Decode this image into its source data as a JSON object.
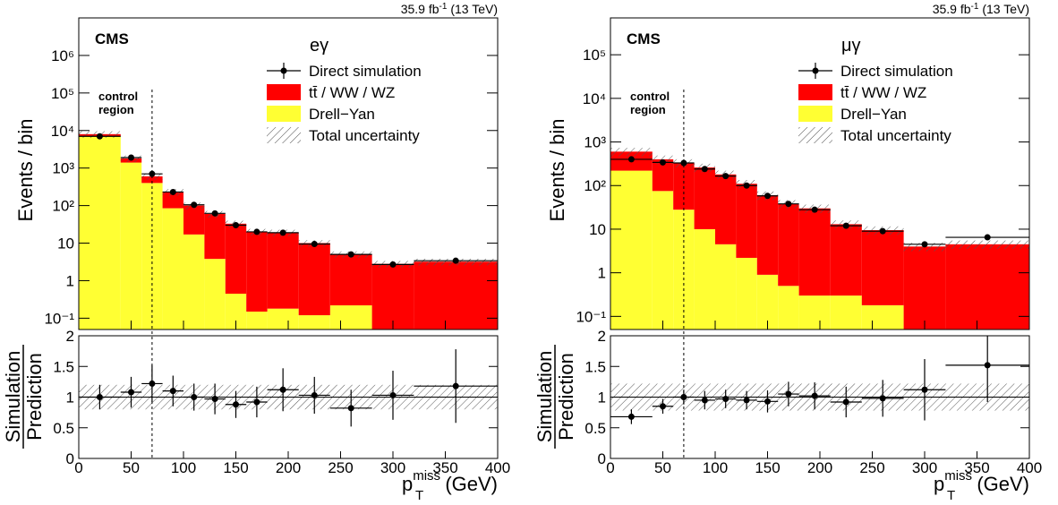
{
  "chart_data": [
    {
      "type": "stacked-histogram",
      "lumi": "35.9 fb",
      "lumi_sup": "-1",
      "lumi_tail": " (13 TeV)",
      "experiment": "CMS",
      "title": "eγ",
      "control": {
        "x": 70,
        "label": [
          "control",
          "region"
        ]
      },
      "y_label": "Events / bin",
      "x_label": {
        "base": "p",
        "sub": "T",
        "sup": "miss",
        "unit": " (GeV)"
      },
      "ratio_label": [
        "Simulation",
        "Prediction"
      ],
      "bins": [
        0,
        40,
        60,
        80,
        100,
        120,
        140,
        160,
        180,
        210,
        240,
        280,
        320,
        400
      ],
      "series": [
        {
          "name": "Drell−Yan",
          "color": "#ffff33",
          "values": [
            7000,
            1400,
            400,
            85,
            17,
            3.8,
            0.45,
            0.15,
            0.18,
            0.12,
            0.22,
            null,
            null
          ]
        },
        {
          "name": "tt̄ / WW / WZ",
          "color": "#ff0000",
          "values": [
            1000,
            400,
            200,
            145,
            83,
            56,
            32.5,
            19.85,
            18.8,
            9.9,
            4.8,
            2.8,
            3.2
          ]
        }
      ],
      "points": {
        "name": "Direct simulation",
        "color": "#000000",
        "values": [
          7000,
          1900,
          700,
          230,
          105,
          62,
          30,
          20,
          19,
          9.5,
          5,
          2.7,
          3.4
        ],
        "ratio": [
          1.0,
          1.08,
          1.22,
          1.1,
          1.0,
          0.97,
          0.88,
          0.92,
          1.12,
          1.03,
          0.82,
          1.03,
          1.18
        ],
        "ratio_errors": [
          0.2,
          0.25,
          0.3,
          0.25,
          0.22,
          0.25,
          0.22,
          0.25,
          0.35,
          0.3,
          0.3,
          0.4,
          0.6
        ]
      },
      "uncertainty": {
        "name": "Total uncertainty",
        "values": [
          0.2,
          0.2,
          0.2,
          0.2,
          0.2,
          0.2,
          0.2,
          0.2,
          0.2,
          0.2,
          0.2,
          0.2,
          0.2
        ]
      },
      "log_y": true,
      "xlim": [
        0,
        400
      ],
      "xticks": [
        0,
        50,
        100,
        150,
        200,
        250,
        300,
        350,
        400
      ],
      "ylim": [
        0.05,
        10000000
      ],
      "yticks": [
        {
          "value": 0.1,
          "label": "10⁻¹"
        },
        1,
        10,
        {
          "value": 100,
          "label": "10²"
        },
        {
          "value": 1000,
          "label": "10³"
        },
        {
          "value": 10000,
          "label": "10⁴"
        },
        {
          "value": 100000,
          "label": "10⁵"
        },
        {
          "value": 1000000,
          "label": "10⁶"
        }
      ],
      "ratio_ylim": [
        0,
        2
      ],
      "ratio_yticks": [
        0,
        0.5,
        1,
        1.5,
        2
      ],
      "ratio_reference": 1
    },
    {
      "type": "stacked-histogram",
      "lumi": "35.9 fb",
      "lumi_sup": "-1",
      "lumi_tail": " (13 TeV)",
      "experiment": "CMS",
      "title": "μγ",
      "control": {
        "x": 70,
        "label": [
          "control",
          "region"
        ]
      },
      "y_label": "Events / bin",
      "x_label": {
        "base": "p",
        "sub": "T",
        "sup": "miss",
        "unit": " (GeV)"
      },
      "ratio_label": [
        "Simulation",
        "Prediction"
      ],
      "bins": [
        0,
        40,
        60,
        80,
        100,
        120,
        140,
        160,
        180,
        210,
        240,
        280,
        320,
        400
      ],
      "series": [
        {
          "name": "Drell−Yan",
          "color": "#ffff33",
          "values": [
            220,
            75,
            28,
            10,
            4.5,
            2.2,
            0.9,
            0.5,
            0.3,
            0.3,
            0.18,
            null,
            null
          ]
        },
        {
          "name": "tt̄ / WW / WZ",
          "color": "#ff0000",
          "values": [
            380,
            325,
            302,
            250,
            175.5,
            107.8,
            59.1,
            37.5,
            29.7,
            12.7,
            9.32,
            4,
            4.5
          ]
        }
      ],
      "points": {
        "name": "Direct simulation",
        "color": "#000000",
        "values": [
          400,
          340,
          330,
          240,
          165,
          100,
          58,
          38,
          28,
          12,
          9,
          4.5,
          6.5
        ],
        "ratio": [
          0.68,
          0.85,
          1.0,
          0.95,
          0.97,
          0.95,
          0.93,
          1.05,
          1.02,
          0.92,
          0.98,
          1.12,
          1.52
        ],
        "ratio_errors": [
          0.12,
          0.12,
          0.12,
          0.15,
          0.15,
          0.15,
          0.18,
          0.2,
          0.22,
          0.25,
          0.3,
          0.5,
          0.6
        ]
      },
      "uncertainty": {
        "name": "Total uncertainty",
        "values": [
          0.22,
          0.22,
          0.22,
          0.22,
          0.22,
          0.22,
          0.22,
          0.22,
          0.22,
          0.22,
          0.22,
          0.22,
          0.22
        ]
      },
      "log_y": true,
      "xlim": [
        0,
        400
      ],
      "xticks": [
        0,
        50,
        100,
        150,
        200,
        250,
        300,
        350,
        400
      ],
      "ylim": [
        0.05,
        700000
      ],
      "yticks": [
        {
          "value": 0.1,
          "label": "10⁻¹"
        },
        1,
        10,
        {
          "value": 100,
          "label": "10²"
        },
        {
          "value": 1000,
          "label": "10³"
        },
        {
          "value": 10000,
          "label": "10⁴"
        },
        {
          "value": 100000,
          "label": "10⁵"
        }
      ],
      "ratio_ylim": [
        0,
        2
      ],
      "ratio_yticks": [
        0,
        0.5,
        1,
        1.5,
        2
      ],
      "ratio_reference": 1
    }
  ]
}
